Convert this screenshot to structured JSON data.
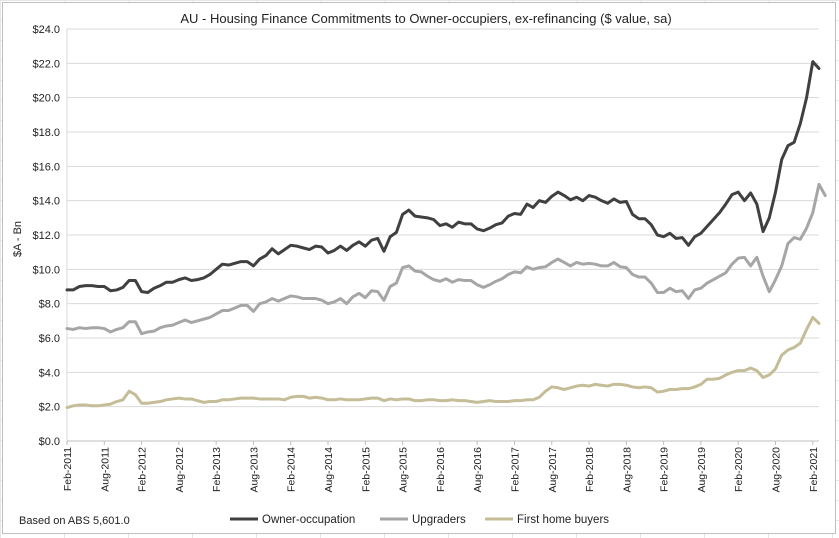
{
  "source_note": "Based on ABS 5,601.0",
  "chart_data": {
    "type": "line",
    "title": "AU - Housing Finance Commitments to Owner-occupiers, ex-refinancing ($ value, sa)",
    "ylabel": "$A - Bn",
    "xlabel": "",
    "ylim": [
      0,
      24
    ],
    "y_ticks": [
      "$0.0",
      "$2.0",
      "$4.0",
      "$6.0",
      "$8.0",
      "$10.0",
      "$12.0",
      "$14.0",
      "$16.0",
      "$18.0",
      "$20.0",
      "$22.0",
      "$24.0"
    ],
    "x_ticks": [
      "Feb-2011",
      "Aug-2011",
      "Feb-2012",
      "Aug-2012",
      "Feb-2013",
      "Aug-2013",
      "Feb-2014",
      "Aug-2014",
      "Feb-2015",
      "Aug-2015",
      "Feb-2016",
      "Aug-2016",
      "Feb-2017",
      "Aug-2017",
      "Feb-2018",
      "Aug-2018",
      "Feb-2019",
      "Aug-2019",
      "Feb-2020",
      "Aug-2020",
      "Feb-2021"
    ],
    "grid": true,
    "legend_position": "bottom",
    "x_start": "Feb-2011",
    "frequency": "monthly",
    "series": [
      {
        "name": "Owner-occupation",
        "color": "#404040",
        "values": [
          8.8,
          8.8,
          9.0,
          9.05,
          9.05,
          9.0,
          9.0,
          8.75,
          8.8,
          8.95,
          9.35,
          9.35,
          8.7,
          8.65,
          8.9,
          9.05,
          9.25,
          9.25,
          9.4,
          9.5,
          9.35,
          9.4,
          9.5,
          9.7,
          10.0,
          10.3,
          10.25,
          10.35,
          10.45,
          10.45,
          10.2,
          10.6,
          10.8,
          11.2,
          10.9,
          11.15,
          11.4,
          11.35,
          11.25,
          11.15,
          11.35,
          11.3,
          10.95,
          11.1,
          11.35,
          11.1,
          11.4,
          11.6,
          11.35,
          11.7,
          11.8,
          11.05,
          11.9,
          12.15,
          13.2,
          13.45,
          13.1,
          13.05,
          13.0,
          12.9,
          12.55,
          12.65,
          12.45,
          12.75,
          12.65,
          12.65,
          12.35,
          12.25,
          12.4,
          12.6,
          12.7,
          13.1,
          13.25,
          13.2,
          13.8,
          13.6,
          14.0,
          13.9,
          14.25,
          14.5,
          14.3,
          14.05,
          14.2,
          14.0,
          14.3,
          14.2,
          14.0,
          13.85,
          14.1,
          13.9,
          13.95,
          13.2,
          12.95,
          12.95,
          12.6,
          12.0,
          11.9,
          12.1,
          11.8,
          11.85,
          11.4,
          11.9,
          12.1,
          12.5,
          12.9,
          13.3,
          13.8,
          14.35,
          14.5,
          14.0,
          14.45,
          13.8,
          12.2,
          13.0,
          14.5,
          16.4,
          17.2,
          17.4,
          18.5,
          20.0,
          22.1,
          21.7
        ]
      },
      {
        "name": "Upgraders",
        "color": "#a6a6a6",
        "values": [
          6.55,
          6.5,
          6.6,
          6.55,
          6.6,
          6.6,
          6.55,
          6.35,
          6.5,
          6.6,
          6.95,
          6.95,
          6.25,
          6.35,
          6.4,
          6.6,
          6.7,
          6.75,
          6.9,
          7.05,
          6.9,
          7.0,
          7.1,
          7.2,
          7.4,
          7.6,
          7.6,
          7.75,
          7.9,
          7.9,
          7.55,
          8.0,
          8.1,
          8.3,
          8.15,
          8.3,
          8.45,
          8.4,
          8.3,
          8.3,
          8.3,
          8.2,
          8.0,
          8.1,
          8.3,
          8.0,
          8.4,
          8.6,
          8.35,
          8.75,
          8.7,
          8.2,
          9.0,
          9.2,
          10.1,
          10.2,
          9.9,
          9.85,
          9.6,
          9.4,
          9.3,
          9.45,
          9.25,
          9.4,
          9.35,
          9.35,
          9.1,
          8.95,
          9.1,
          9.3,
          9.45,
          9.7,
          9.85,
          9.8,
          10.15,
          10.0,
          10.1,
          10.15,
          10.4,
          10.6,
          10.4,
          10.2,
          10.4,
          10.3,
          10.35,
          10.3,
          10.2,
          10.2,
          10.4,
          10.15,
          10.1,
          9.7,
          9.55,
          9.55,
          9.2,
          8.65,
          8.65,
          8.9,
          8.7,
          8.75,
          8.3,
          8.8,
          8.9,
          9.2,
          9.4,
          9.6,
          9.8,
          10.3,
          10.65,
          10.7,
          10.2,
          10.7,
          9.6,
          8.7,
          9.4,
          10.2,
          11.5,
          11.85,
          11.75,
          12.4,
          13.3,
          14.95,
          14.3
        ]
      },
      {
        "name": "First home buyers",
        "color": "#c4bd97",
        "values": [
          1.95,
          2.05,
          2.1,
          2.1,
          2.05,
          2.05,
          2.1,
          2.15,
          2.3,
          2.4,
          2.9,
          2.7,
          2.2,
          2.2,
          2.25,
          2.3,
          2.4,
          2.45,
          2.5,
          2.45,
          2.45,
          2.35,
          2.25,
          2.3,
          2.3,
          2.4,
          2.4,
          2.45,
          2.5,
          2.5,
          2.5,
          2.45,
          2.45,
          2.45,
          2.45,
          2.4,
          2.55,
          2.6,
          2.6,
          2.5,
          2.55,
          2.5,
          2.4,
          2.4,
          2.45,
          2.4,
          2.4,
          2.4,
          2.45,
          2.5,
          2.5,
          2.35,
          2.45,
          2.4,
          2.45,
          2.45,
          2.35,
          2.35,
          2.4,
          2.4,
          2.35,
          2.35,
          2.4,
          2.35,
          2.35,
          2.3,
          2.25,
          2.3,
          2.35,
          2.3,
          2.3,
          2.3,
          2.35,
          2.35,
          2.4,
          2.4,
          2.55,
          2.9,
          3.15,
          3.1,
          3.0,
          3.1,
          3.2,
          3.25,
          3.2,
          3.3,
          3.25,
          3.2,
          3.3,
          3.3,
          3.25,
          3.15,
          3.1,
          3.15,
          3.1,
          2.85,
          2.9,
          3.0,
          3.0,
          3.05,
          3.05,
          3.15,
          3.3,
          3.6,
          3.6,
          3.65,
          3.85,
          4.0,
          4.1,
          4.1,
          4.25,
          4.1,
          3.7,
          3.85,
          4.2,
          5.0,
          5.3,
          5.45,
          5.7,
          6.5,
          7.2,
          6.85
        ]
      }
    ]
  }
}
